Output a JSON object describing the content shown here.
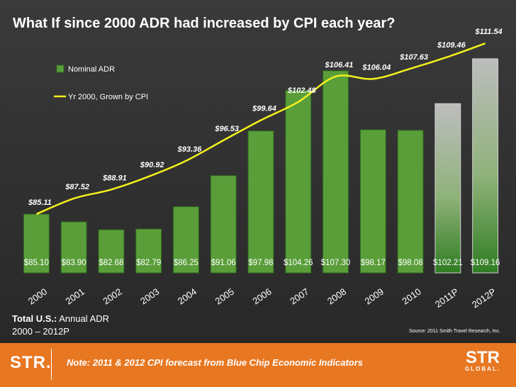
{
  "title": "What If since 2000 ADR had increased by CPI each year?",
  "chart_data": {
    "type": "bar",
    "categories": [
      "2000",
      "2001",
      "2002",
      "2003",
      "2004",
      "2005",
      "2006",
      "2007",
      "2008",
      "2009",
      "2010",
      "2011P",
      "2012P"
    ],
    "series": [
      {
        "name": "Nominal ADR",
        "type": "bar",
        "values": [
          85.1,
          83.9,
          82.68,
          82.79,
          86.25,
          91.06,
          97.98,
          104.26,
          107.3,
          98.17,
          98.08,
          102.21,
          109.16
        ],
        "labels": [
          "$85.10",
          "$83.90",
          "$82.68",
          "$82.79",
          "$86.25",
          "$91.06",
          "$97.98",
          "$104.26",
          "$107.30",
          "$98.17",
          "$98.08",
          "$102.21",
          "$109.16"
        ]
      },
      {
        "name": "Yr 2000, Grown by CPI",
        "type": "line",
        "values": [
          85.11,
          87.52,
          88.91,
          90.92,
          93.36,
          96.53,
          99.64,
          102.48,
          106.41,
          106.04,
          107.63,
          109.46,
          111.54
        ],
        "labels": [
          "$85.11",
          "$87.52",
          "$88.91",
          "$90.92",
          "$93.36",
          "$96.53",
          "$99.64",
          "$102.48",
          "$106.41",
          "$106.04",
          "$107.63",
          "$109.46",
          "$111.54"
        ]
      }
    ],
    "forecast_categories": [
      "2011P",
      "2012P"
    ],
    "ylim": [
      76,
      109.7
    ],
    "xlabel": "",
    "ylabel": "",
    "legend": "top-left",
    "colors": {
      "bar": "#5a9e3a",
      "bar_edge": "#2e6a1f",
      "line": "#f4f11c",
      "forecast_top": "#b8b8b8",
      "forecast_bottom": "#3f8a2a",
      "text": "#ffffff"
    }
  },
  "footer": {
    "region": "Total U.S.:",
    "subtitle": " Annual ADR",
    "years": "2000 – 2012P"
  },
  "source": "Source: 2011 Smith Travel Research, Inc.",
  "bottom_bar": {
    "logo_left": "STR.",
    "note": "Note: 2011 & 2012 CPI forecast from Blue Chip Economic Indicators",
    "logo_right": "STR",
    "logo_right_sub": "GLOBAL.",
    "accent": "#e87722"
  }
}
